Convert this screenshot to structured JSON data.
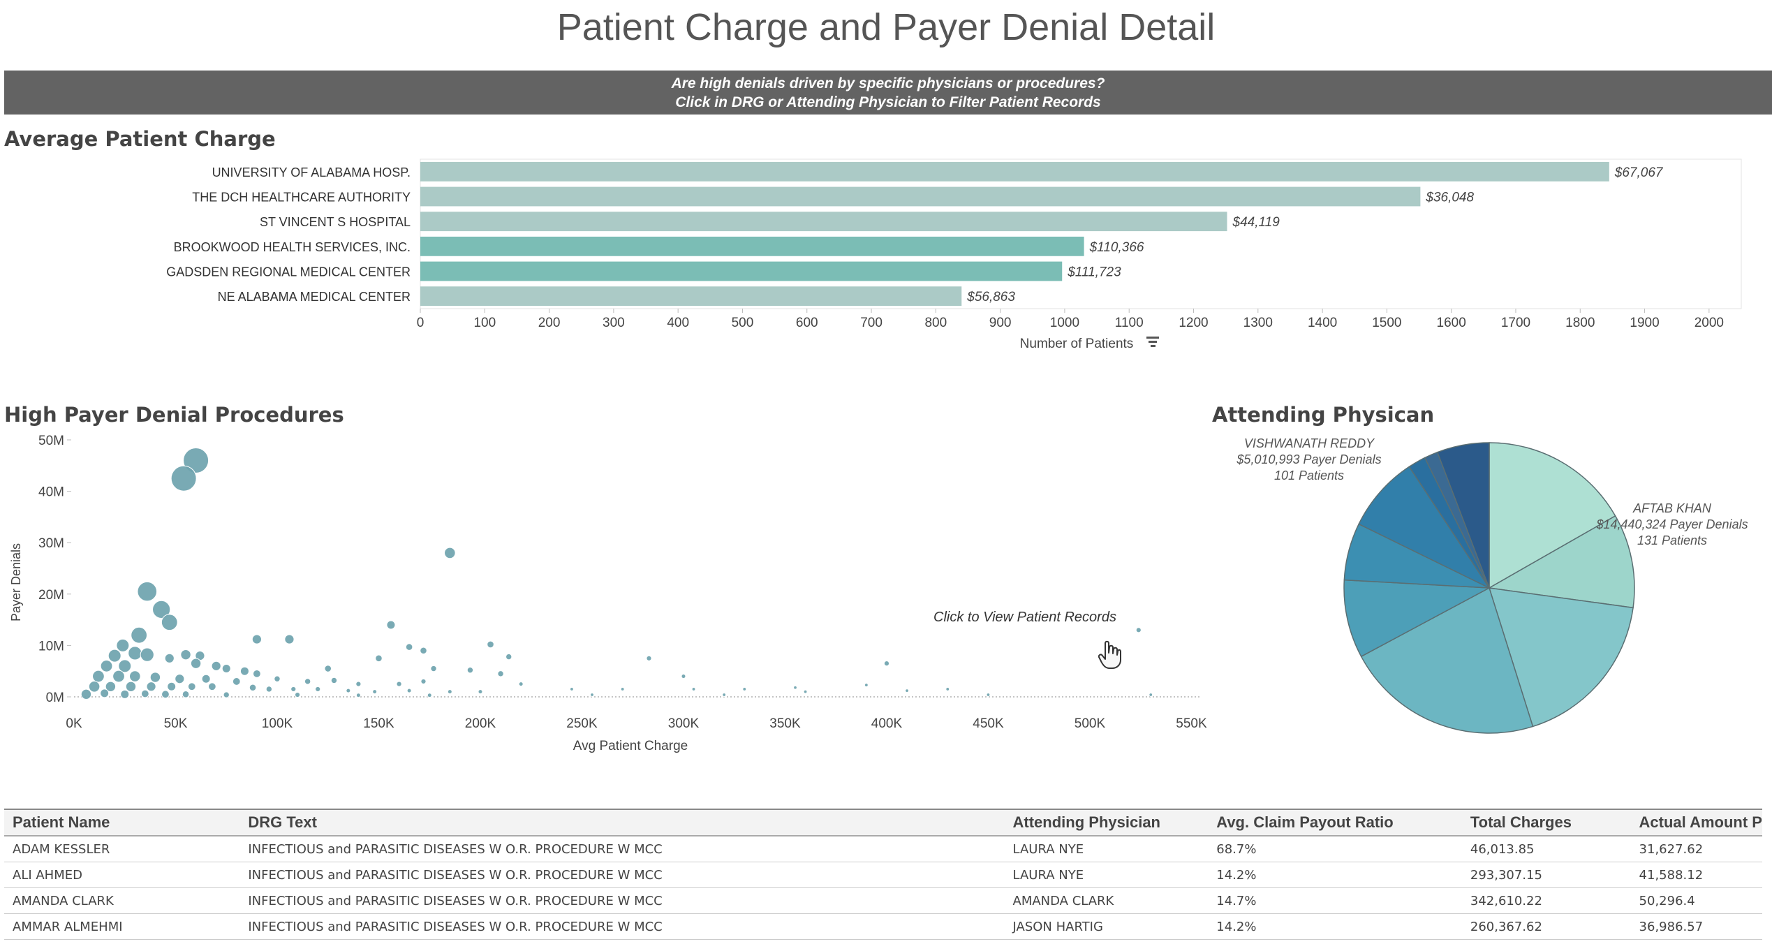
{
  "page": {
    "title": "Patient Charge and Payer Denial Detail",
    "banner_line1": "Are high denials driven by specific physicians or procedures?",
    "banner_line2": "Click in DRG or Attending Physician to Filter Patient Records"
  },
  "colors": {
    "banner": "#636363",
    "teal_dark": "#7bbdb5",
    "teal_light": "#abcac6",
    "scatter": "#6fa4ae",
    "pie_palette": [
      "#aee0d3",
      "#9dd5cb",
      "#84c6ca",
      "#6cb6c2",
      "#4d9fb8",
      "#3c8fb2",
      "#317faa",
      "#2a6f9f",
      "#3b6a93",
      "#2b5a8a"
    ]
  },
  "bar_section": {
    "title": "Average Patient Charge",
    "sort_icon": "sort-descending-icon"
  },
  "scatter_section": {
    "title": "High Payer Denial Procedures",
    "click_note": "Click to View Patient Records",
    "cursor_icon": "hand-pointer-icon"
  },
  "pie_section": {
    "title": "Attending Physican",
    "label_reddy": {
      "name": "VISHWANATH REDDY",
      "denials": "$5,010,993 Payer Denials",
      "patients": "101 Patients"
    },
    "label_khan": {
      "name": "AFTAB KHAN",
      "denials": "$14,440,324 Payer Denials",
      "patients": "131 Patients"
    }
  },
  "chart_data": [
    {
      "type": "bar",
      "orientation": "horizontal",
      "title": "Average Patient Charge",
      "categories": [
        "UNIVERSITY OF ALABAMA HOSP.",
        "THE DCH HEALTHCARE AUTHORITY",
        "ST VINCENT S HOSPITAL",
        "BROOKWOOD HEALTH SERVICES, INC.",
        "GADSDEN REGIONAL MEDICAL CENTER",
        "NE ALABAMA  MEDICAL CENTER"
      ],
      "values": [
        1845,
        1552,
        1252,
        1030,
        996,
        840
      ],
      "data_labels": [
        "$67,067",
        "$36,048",
        "$44,119",
        "$110,366",
        "$111,723",
        "$56,863"
      ],
      "bar_shades": [
        "light",
        "light",
        "light",
        "dark",
        "dark",
        "light"
      ],
      "xlabel": "Number of Patients",
      "xlim": [
        0,
        2050
      ],
      "xticks": [
        0,
        100,
        200,
        300,
        400,
        500,
        600,
        700,
        800,
        900,
        1000,
        1100,
        1200,
        1300,
        1400,
        1500,
        1600,
        1700,
        1800,
        1900,
        2000
      ]
    },
    {
      "type": "scatter",
      "title": "High Payer Denial Procedures",
      "xlabel": "Avg Patient Charge",
      "ylabel": "Payer Denials",
      "xlim": [
        0,
        555000
      ],
      "ylim": [
        0,
        50000000
      ],
      "xticks": [
        0,
        50000,
        100000,
        150000,
        200000,
        250000,
        300000,
        350000,
        400000,
        450000,
        500000,
        550000
      ],
      "xtick_labels": [
        "0K",
        "50K",
        "100K",
        "150K",
        "200K",
        "250K",
        "300K",
        "350K",
        "400K",
        "450K",
        "500K",
        "550K"
      ],
      "yticks": [
        0,
        10000000,
        20000000,
        30000000,
        40000000,
        50000000
      ],
      "ytick_labels": [
        "0M",
        "10M",
        "20M",
        "30M",
        "40M",
        "50M"
      ],
      "points": [
        {
          "x": 60000,
          "y": 46000000,
          "size": 3
        },
        {
          "x": 54000,
          "y": 42500000,
          "size": 3
        },
        {
          "x": 185000,
          "y": 28000000,
          "size": 1.3
        },
        {
          "x": 36000,
          "y": 20500000,
          "size": 2.3
        },
        {
          "x": 43000,
          "y": 17000000,
          "size": 2.1
        },
        {
          "x": 47000,
          "y": 14500000,
          "size": 1.9
        },
        {
          "x": 32000,
          "y": 12000000,
          "size": 1.9
        },
        {
          "x": 156000,
          "y": 14000000,
          "size": 1
        },
        {
          "x": 24000,
          "y": 10000000,
          "size": 1.5
        },
        {
          "x": 90000,
          "y": 11200000,
          "size": 1.1
        },
        {
          "x": 106000,
          "y": 11200000,
          "size": 1.1
        },
        {
          "x": 205000,
          "y": 10200000,
          "size": 0.8
        },
        {
          "x": 524000,
          "y": 13000000,
          "size": 0.6
        },
        {
          "x": 20000,
          "y": 8000000,
          "size": 1.5
        },
        {
          "x": 30000,
          "y": 8500000,
          "size": 1.6
        },
        {
          "x": 36000,
          "y": 8200000,
          "size": 1.6
        },
        {
          "x": 55000,
          "y": 8200000,
          "size": 1.2
        },
        {
          "x": 62000,
          "y": 8000000,
          "size": 1.1
        },
        {
          "x": 47000,
          "y": 7500000,
          "size": 1.1
        },
        {
          "x": 172000,
          "y": 9000000,
          "size": 0.8
        },
        {
          "x": 165000,
          "y": 9700000,
          "size": 0.8
        },
        {
          "x": 150000,
          "y": 7500000,
          "size": 0.8
        },
        {
          "x": 214000,
          "y": 7800000,
          "size": 0.7
        },
        {
          "x": 283000,
          "y": 7500000,
          "size": 0.6
        },
        {
          "x": 400000,
          "y": 6500000,
          "size": 0.6
        },
        {
          "x": 16000,
          "y": 6000000,
          "size": 1.4
        },
        {
          "x": 25000,
          "y": 6000000,
          "size": 1.5
        },
        {
          "x": 60000,
          "y": 6500000,
          "size": 1.2
        },
        {
          "x": 70000,
          "y": 6000000,
          "size": 1.1
        },
        {
          "x": 75000,
          "y": 5500000,
          "size": 1
        },
        {
          "x": 84000,
          "y": 5000000,
          "size": 1
        },
        {
          "x": 90000,
          "y": 4500000,
          "size": 0.9
        },
        {
          "x": 125000,
          "y": 5500000,
          "size": 0.8
        },
        {
          "x": 177000,
          "y": 5500000,
          "size": 0.7
        },
        {
          "x": 195000,
          "y": 5200000,
          "size": 0.7
        },
        {
          "x": 210000,
          "y": 4500000,
          "size": 0.7
        },
        {
          "x": 300000,
          "y": 4000000,
          "size": 0.5
        },
        {
          "x": 12000,
          "y": 4000000,
          "size": 1.4
        },
        {
          "x": 22000,
          "y": 4000000,
          "size": 1.4
        },
        {
          "x": 30000,
          "y": 4000000,
          "size": 1.3
        },
        {
          "x": 40000,
          "y": 3800000,
          "size": 1.2
        },
        {
          "x": 52000,
          "y": 3500000,
          "size": 1.1
        },
        {
          "x": 65000,
          "y": 3500000,
          "size": 1
        },
        {
          "x": 80000,
          "y": 3000000,
          "size": 0.9
        },
        {
          "x": 100000,
          "y": 3500000,
          "size": 0.7
        },
        {
          "x": 115000,
          "y": 3000000,
          "size": 0.7
        },
        {
          "x": 128000,
          "y": 3200000,
          "size": 0.7
        },
        {
          "x": 140000,
          "y": 2500000,
          "size": 0.6
        },
        {
          "x": 160000,
          "y": 2500000,
          "size": 0.6
        },
        {
          "x": 172000,
          "y": 3000000,
          "size": 0.6
        },
        {
          "x": 220000,
          "y": 2500000,
          "size": 0.5
        },
        {
          "x": 10000,
          "y": 2000000,
          "size": 1.3
        },
        {
          "x": 18000,
          "y": 2000000,
          "size": 1.2
        },
        {
          "x": 28000,
          "y": 2000000,
          "size": 1.2
        },
        {
          "x": 38000,
          "y": 2000000,
          "size": 1.1
        },
        {
          "x": 48000,
          "y": 2000000,
          "size": 1
        },
        {
          "x": 58000,
          "y": 2000000,
          "size": 0.9
        },
        {
          "x": 68000,
          "y": 2000000,
          "size": 0.9
        },
        {
          "x": 88000,
          "y": 1800000,
          "size": 0.8
        },
        {
          "x": 96000,
          "y": 1500000,
          "size": 0.7
        },
        {
          "x": 108000,
          "y": 1500000,
          "size": 0.6
        },
        {
          "x": 120000,
          "y": 1500000,
          "size": 0.6
        },
        {
          "x": 135000,
          "y": 1200000,
          "size": 0.5
        },
        {
          "x": 148000,
          "y": 1000000,
          "size": 0.5
        },
        {
          "x": 165000,
          "y": 1200000,
          "size": 0.5
        },
        {
          "x": 185000,
          "y": 1000000,
          "size": 0.5
        },
        {
          "x": 200000,
          "y": 1000000,
          "size": 0.5
        },
        {
          "x": 245000,
          "y": 1500000,
          "size": 0.4
        },
        {
          "x": 270000,
          "y": 1500000,
          "size": 0.4
        },
        {
          "x": 305000,
          "y": 1500000,
          "size": 0.4
        },
        {
          "x": 330000,
          "y": 1500000,
          "size": 0.4
        },
        {
          "x": 355000,
          "y": 1800000,
          "size": 0.4
        },
        {
          "x": 390000,
          "y": 2300000,
          "size": 0.4
        },
        {
          "x": 410000,
          "y": 1200000,
          "size": 0.4
        },
        {
          "x": 430000,
          "y": 1500000,
          "size": 0.4
        },
        {
          "x": 6000,
          "y": 500000,
          "size": 1.2
        },
        {
          "x": 15000,
          "y": 700000,
          "size": 1
        },
        {
          "x": 25000,
          "y": 500000,
          "size": 1
        },
        {
          "x": 35000,
          "y": 600000,
          "size": 0.9
        },
        {
          "x": 45000,
          "y": 500000,
          "size": 0.9
        },
        {
          "x": 55000,
          "y": 500000,
          "size": 0.8
        },
        {
          "x": 75000,
          "y": 400000,
          "size": 0.7
        },
        {
          "x": 110000,
          "y": 400000,
          "size": 0.6
        },
        {
          "x": 140000,
          "y": 300000,
          "size": 0.5
        },
        {
          "x": 175000,
          "y": 300000,
          "size": 0.5
        },
        {
          "x": 255000,
          "y": 400000,
          "size": 0.4
        },
        {
          "x": 320000,
          "y": 400000,
          "size": 0.4
        },
        {
          "x": 360000,
          "y": 1000000,
          "size": 0.4
        },
        {
          "x": 450000,
          "y": 400000,
          "size": 0.4
        },
        {
          "x": 530000,
          "y": 400000,
          "size": 0.4
        }
      ]
    },
    {
      "type": "pie",
      "title": "Attending Physican",
      "slices": [
        {
          "label": "AFTAB KHAN",
          "value": 14440324
        },
        {
          "label": "",
          "value": 9000000
        },
        {
          "label": "",
          "value": 15500000
        },
        {
          "label": "",
          "value": 19000000
        },
        {
          "label": "",
          "value": 7500000
        },
        {
          "label": "",
          "value": 5500000
        },
        {
          "label": "",
          "value": 7300000
        },
        {
          "label": "",
          "value": 1700000
        },
        {
          "label": "",
          "value": 1300000
        },
        {
          "label": "VISHWANATH REDDY",
          "value": 5010993
        }
      ]
    }
  ],
  "records_table": {
    "columns": [
      "Patient Name",
      "DRG Text",
      "Attending Physician",
      "Avg. Claim Payout Ratio",
      "Total Charges",
      "Actual Amount P"
    ],
    "rows": [
      [
        "ADAM KESSLER",
        "INFECTIOUS and PARASITIC DISEASES W O.R. PROCEDURE W MCC",
        "LAURA NYE",
        "68.7%",
        "46,013.85",
        "31,627.62"
      ],
      [
        "ALI AHMED",
        "INFECTIOUS and PARASITIC DISEASES W O.R. PROCEDURE W MCC",
        "LAURA NYE",
        "14.2%",
        "293,307.15",
        "41,588.12"
      ],
      [
        "AMANDA CLARK",
        "INFECTIOUS and PARASITIC DISEASES W O.R. PROCEDURE W MCC",
        "AMANDA CLARK",
        "14.7%",
        "342,610.22",
        "50,296.4"
      ],
      [
        "AMMAR ALMEHMI",
        "INFECTIOUS and PARASITIC DISEASES W O.R. PROCEDURE W MCC",
        "JASON HARTIG",
        "14.2%",
        "260,367.62",
        "36,986.57"
      ]
    ]
  }
}
